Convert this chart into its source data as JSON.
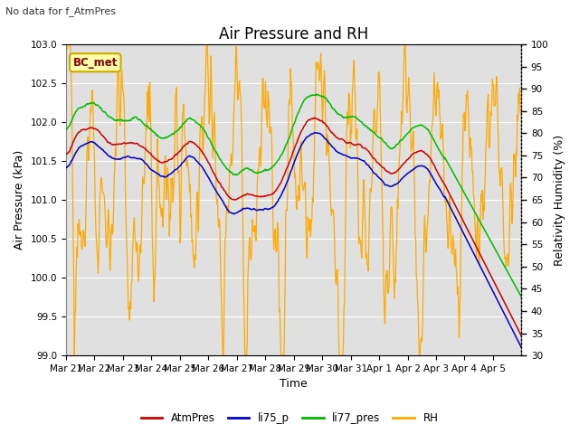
{
  "title": "Air Pressure and RH",
  "subtitle": "No data for f_AtmPres",
  "xlabel": "Time",
  "ylabel_left": "Air Pressure (kPa)",
  "ylabel_right": "Relativity Humidity (%)",
  "annotation": "BC_met",
  "x_tick_labels": [
    "Mar 21",
    "Mar 22",
    "Mar 23",
    "Mar 24",
    "Mar 25",
    "Mar 26",
    "Mar 27",
    "Mar 28",
    "Mar 29",
    "Mar 30",
    "Mar 31",
    "Apr 1",
    "Apr 2",
    "Apr 3",
    "Apr 4",
    "Apr 5"
  ],
  "ylim_left": [
    99.0,
    103.0
  ],
  "ylim_right": [
    30,
    100
  ],
  "legend": [
    "AtmPres",
    "li75_p",
    "li77_pres",
    "RH"
  ],
  "colors": [
    "#cc0000",
    "#0000cc",
    "#00bb00",
    "#ffaa00"
  ],
  "bg_color": "#e0e0e0",
  "title_fontsize": 12,
  "label_fontsize": 9,
  "tick_fontsize": 7.5
}
